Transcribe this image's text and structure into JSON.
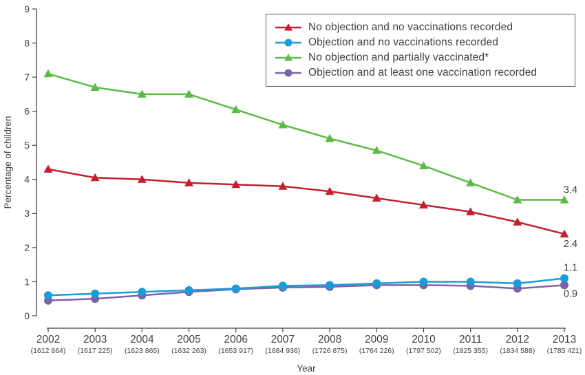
{
  "chart_data": {
    "type": "line",
    "title": "",
    "xlabel": "Year",
    "ylabel": "Percentage of children",
    "ylim": [
      0,
      9
    ],
    "yticks": [
      0,
      1,
      2,
      3,
      4,
      5,
      6,
      7,
      8,
      9
    ],
    "grid": false,
    "legend_position": "top-right",
    "text_color": "#414042",
    "categories": [
      "2002",
      "2003",
      "2004",
      "2005",
      "2006",
      "2007",
      "2008",
      "2009",
      "2010",
      "2011",
      "2012",
      "2013"
    ],
    "category_sublabels": [
      "(1612 864)",
      "(1617 225)",
      "(1623 865)",
      "(1632 263)",
      "(1653 917)",
      "(1684 936)",
      "(1726 875)",
      "(1764 226)",
      "(1797 502)",
      "(1825 355)",
      "(1834 588)",
      "(1785 421)"
    ],
    "series": [
      {
        "name": "No objection and no vaccinations recorded",
        "color": "#c2202f",
        "marker": "triangle",
        "values": [
          4.3,
          4.05,
          4.0,
          3.9,
          3.85,
          3.8,
          3.65,
          3.45,
          3.25,
          3.05,
          2.75,
          2.4
        ],
        "end_label": "2.4",
        "end_label_position": "below"
      },
      {
        "name": "Objection and no vaccinations recorded",
        "color": "#1a9cd8",
        "marker": "circle",
        "values": [
          0.6,
          0.65,
          0.7,
          0.75,
          0.8,
          0.88,
          0.9,
          0.95,
          1.0,
          1.0,
          0.95,
          1.1
        ],
        "end_label": "1.1",
        "end_label_position": "above"
      },
      {
        "name": "No objection and partially vaccinated*",
        "color": "#5cba47",
        "marker": "triangle",
        "values": [
          7.1,
          6.7,
          6.5,
          6.5,
          6.05,
          5.6,
          5.2,
          4.85,
          4.4,
          3.9,
          3.4,
          3.4
        ],
        "end_label": "3.4",
        "end_label_position": "above"
      },
      {
        "name": "Objection and at least one vaccination recorded",
        "color": "#7c63a5",
        "marker": "circle",
        "values": [
          0.45,
          0.5,
          0.6,
          0.7,
          0.78,
          0.83,
          0.85,
          0.9,
          0.9,
          0.88,
          0.8,
          0.9
        ],
        "end_label": "0.9",
        "end_label_position": "below"
      }
    ]
  }
}
